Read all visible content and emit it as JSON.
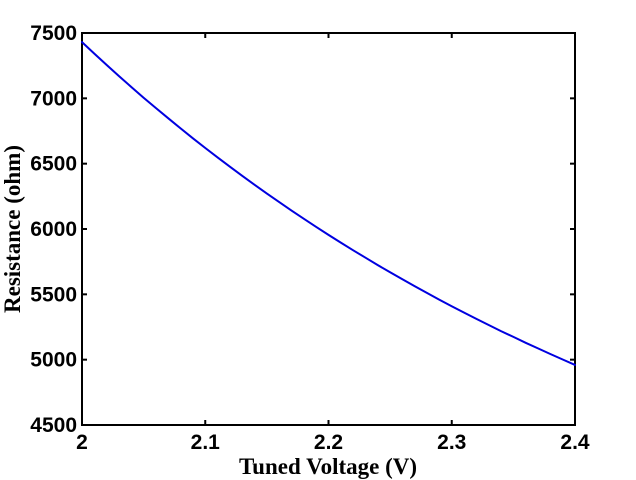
{
  "figure": {
    "background": "#ffffff"
  },
  "chart_data": {
    "type": "line",
    "title": "",
    "xlabel": "Tuned Voltage (V)",
    "ylabel": "Resistance (ohm)",
    "xlim": [
      2.0,
      2.4
    ],
    "ylim": [
      4500,
      7500
    ],
    "xticks": [
      2.0,
      2.1,
      2.2,
      2.3,
      2.4
    ],
    "xtick_labels": [
      "2",
      "2.1",
      "2.2",
      "2.3",
      "2.4"
    ],
    "yticks": [
      4500,
      5000,
      5500,
      6000,
      6500,
      7000,
      7500
    ],
    "ytick_labels": [
      "4500",
      "5000",
      "5500",
      "6000",
      "6500",
      "7000",
      "7500"
    ],
    "grid": false,
    "legend": null,
    "box": true,
    "line_color": "#0000e0",
    "axis_color": "#000000",
    "series": [
      {
        "name": "resistance",
        "x": [
          2.0,
          2.01,
          2.02,
          2.03,
          2.04,
          2.05,
          2.06,
          2.07,
          2.08,
          2.09,
          2.1,
          2.11,
          2.12,
          2.13,
          2.14,
          2.15,
          2.16,
          2.17,
          2.18,
          2.19,
          2.2,
          2.21,
          2.22,
          2.23,
          2.24,
          2.25,
          2.26,
          2.27,
          2.28,
          2.29,
          2.3,
          2.31,
          2.32,
          2.33,
          2.34,
          2.35,
          2.36,
          2.37,
          2.38,
          2.39,
          2.4
        ],
        "y": [
          7430,
          7342,
          7255,
          7170,
          7087,
          7005,
          6925,
          6847,
          6770,
          6694,
          6620,
          6548,
          6477,
          6407,
          6338,
          6271,
          6206,
          6141,
          6078,
          6016,
          5955,
          5896,
          5837,
          5780,
          5724,
          5669,
          5615,
          5562,
          5510,
          5459,
          5409,
          5360,
          5312,
          5265,
          5219,
          5174,
          5129,
          5086,
          5043,
          5001,
          4960
        ]
      }
    ]
  }
}
